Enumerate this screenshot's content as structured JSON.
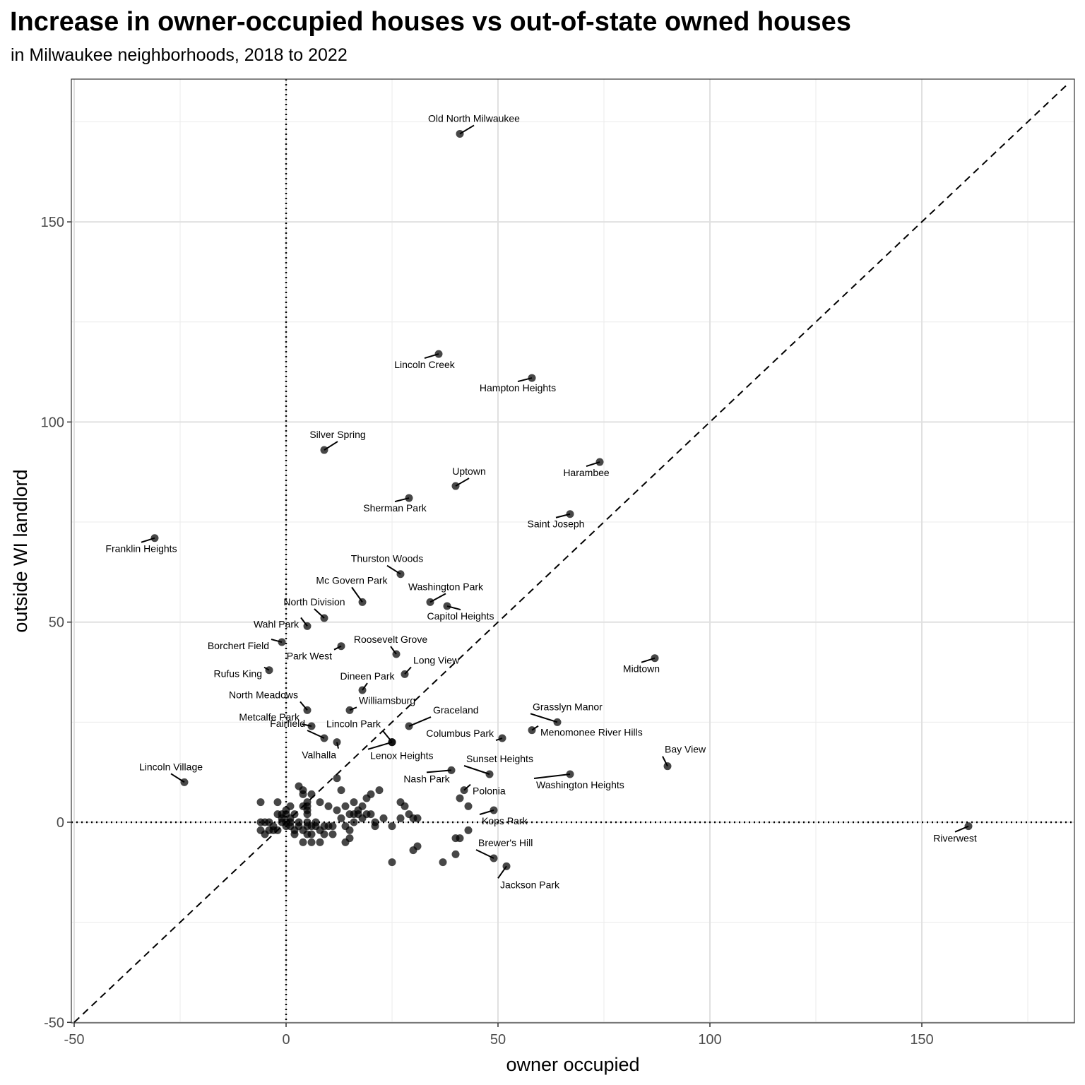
{
  "chart_data": {
    "type": "scatter",
    "title": "Increase in owner-occupied houses vs out-of-state owned houses",
    "subtitle": "in Milwaukee neighborhoods, 2018 to 2022",
    "xlabel": "owner occupied",
    "ylabel": "outside WI landlord",
    "xlim": [
      -50,
      185
    ],
    "ylim": [
      -50,
      186
    ],
    "xticks": [
      -50,
      0,
      50,
      100,
      150
    ],
    "yticks": [
      -50,
      0,
      50,
      100,
      150
    ],
    "grid": true,
    "reference_lines": [
      "y = x (dashed)",
      "x = 0 (dotted)",
      "y = 0 (dotted)"
    ],
    "labeled_points": [
      {
        "name": "Old North Milwaukee",
        "x": 41,
        "y": 172
      },
      {
        "name": "Lincoln Creek",
        "x": 36,
        "y": 117
      },
      {
        "name": "Hampton Heights",
        "x": 58,
        "y": 111
      },
      {
        "name": "Silver Spring",
        "x": 9,
        "y": 93
      },
      {
        "name": "Harambee",
        "x": 74,
        "y": 90
      },
      {
        "name": "Uptown",
        "x": 40,
        "y": 84
      },
      {
        "name": "Sherman Park",
        "x": 29,
        "y": 81
      },
      {
        "name": "Saint Joseph",
        "x": 67,
        "y": 77
      },
      {
        "name": "Franklin Heights",
        "x": -31,
        "y": 71
      },
      {
        "name": "Thurston Woods",
        "x": 27,
        "y": 62
      },
      {
        "name": "Mc Govern Park",
        "x": 18,
        "y": 55
      },
      {
        "name": "Washington Park",
        "x": 34,
        "y": 55
      },
      {
        "name": "Capitol Heights",
        "x": 38,
        "y": 54
      },
      {
        "name": "North Division",
        "x": 9,
        "y": 51
      },
      {
        "name": "Wahl Park",
        "x": 5,
        "y": 49
      },
      {
        "name": "Borchert Field",
        "x": -1,
        "y": 45
      },
      {
        "name": "Park West",
        "x": 13,
        "y": 44
      },
      {
        "name": "Roosevelt Grove",
        "x": 26,
        "y": 42
      },
      {
        "name": "Midtown",
        "x": 87,
        "y": 41
      },
      {
        "name": "Rufus King",
        "x": -4,
        "y": 38
      },
      {
        "name": "Long View",
        "x": 28,
        "y": 37
      },
      {
        "name": "Dineen Park",
        "x": 18,
        "y": 33
      },
      {
        "name": "North Meadows",
        "x": 5,
        "y": 28
      },
      {
        "name": "Williamsburg",
        "x": 15,
        "y": 28
      },
      {
        "name": "Grasslyn Manor",
        "x": 64,
        "y": 25
      },
      {
        "name": "Metcalfe Park",
        "x": 6,
        "y": 24
      },
      {
        "name": "Graceland",
        "x": 29,
        "y": 24
      },
      {
        "name": "Menomonee River Hills",
        "x": 58,
        "y": 23
      },
      {
        "name": "Columbus Park",
        "x": 51,
        "y": 21
      },
      {
        "name": "Fairfield",
        "x": 9,
        "y": 21
      },
      {
        "name": "Lincoln Park",
        "x": 25,
        "y": 20
      },
      {
        "name": "Lenox Heights",
        "x": 25,
        "y": 20
      },
      {
        "name": "Valhalla",
        "x": 12,
        "y": 20
      },
      {
        "name": "Lincoln Village",
        "x": -24,
        "y": 10
      },
      {
        "name": "Bay View",
        "x": 90,
        "y": 14
      },
      {
        "name": "Nash Park",
        "x": 39,
        "y": 13
      },
      {
        "name": "Sunset Heights",
        "x": 48,
        "y": 12
      },
      {
        "name": "Washington Heights",
        "x": 67,
        "y": 12
      },
      {
        "name": "Polonia",
        "x": 42,
        "y": 8
      },
      {
        "name": "Kops Park",
        "x": 49,
        "y": 3
      },
      {
        "name": "Riverwest",
        "x": 161,
        "y": -1
      },
      {
        "name": "Brewer's Hill",
        "x": 49,
        "y": -9
      },
      {
        "name": "Jackson Park",
        "x": 52,
        "y": -11
      }
    ],
    "unlabeled_points": [
      [
        -6,
        5
      ],
      [
        -6,
        0
      ],
      [
        -6,
        -2
      ],
      [
        -5,
        -3
      ],
      [
        -5,
        0
      ],
      [
        -4,
        -2
      ],
      [
        -4,
        0
      ],
      [
        -3,
        -1
      ],
      [
        -3,
        -2
      ],
      [
        -2,
        2
      ],
      [
        -2,
        5
      ],
      [
        -2,
        -2
      ],
      [
        -1,
        1
      ],
      [
        -1,
        0
      ],
      [
        -1,
        2
      ],
      [
        0,
        3
      ],
      [
        0,
        0
      ],
      [
        0,
        -1
      ],
      [
        0,
        2
      ],
      [
        1,
        1
      ],
      [
        1,
        4
      ],
      [
        1,
        -1
      ],
      [
        1,
        0
      ],
      [
        2,
        2
      ],
      [
        2,
        -2
      ],
      [
        2,
        -3
      ],
      [
        3,
        0
      ],
      [
        3,
        -1
      ],
      [
        3,
        9
      ],
      [
        4,
        8
      ],
      [
        4,
        7
      ],
      [
        4,
        4
      ],
      [
        4,
        -2
      ],
      [
        4,
        -5
      ],
      [
        5,
        5
      ],
      [
        5,
        3
      ],
      [
        5,
        2
      ],
      [
        5,
        0
      ],
      [
        5,
        -1
      ],
      [
        5,
        4
      ],
      [
        5,
        -3
      ],
      [
        6,
        7
      ],
      [
        6,
        -1
      ],
      [
        6,
        -3
      ],
      [
        6,
        -5
      ],
      [
        7,
        -1
      ],
      [
        7,
        0
      ],
      [
        8,
        5
      ],
      [
        8,
        -2
      ],
      [
        8,
        -5
      ],
      [
        9,
        -1
      ],
      [
        9,
        -3
      ],
      [
        10,
        4
      ],
      [
        10,
        -1
      ],
      [
        11,
        -1
      ],
      [
        11,
        -3
      ],
      [
        12,
        3
      ],
      [
        12,
        11
      ],
      [
        13,
        8
      ],
      [
        13,
        1
      ],
      [
        14,
        4
      ],
      [
        14,
        -1
      ],
      [
        14,
        -5
      ],
      [
        15,
        2
      ],
      [
        15,
        -2
      ],
      [
        15,
        -4
      ],
      [
        16,
        5
      ],
      [
        16,
        2
      ],
      [
        16,
        0
      ],
      [
        17,
        3
      ],
      [
        17,
        2
      ],
      [
        18,
        4
      ],
      [
        18,
        1
      ],
      [
        19,
        6
      ],
      [
        19,
        2
      ],
      [
        20,
        7
      ],
      [
        20,
        2
      ],
      [
        21,
        0
      ],
      [
        21,
        -1
      ],
      [
        22,
        8
      ],
      [
        23,
        1
      ],
      [
        25,
        -1
      ],
      [
        25,
        -10
      ],
      [
        27,
        5
      ],
      [
        27,
        1
      ],
      [
        28,
        4
      ],
      [
        29,
        2
      ],
      [
        30,
        1
      ],
      [
        30,
        -7
      ],
      [
        31,
        1
      ],
      [
        31,
        -6
      ],
      [
        37,
        -10
      ],
      [
        40,
        -4
      ],
      [
        40,
        -8
      ],
      [
        41,
        -4
      ],
      [
        41,
        6
      ],
      [
        43,
        4
      ],
      [
        43,
        -2
      ]
    ]
  }
}
